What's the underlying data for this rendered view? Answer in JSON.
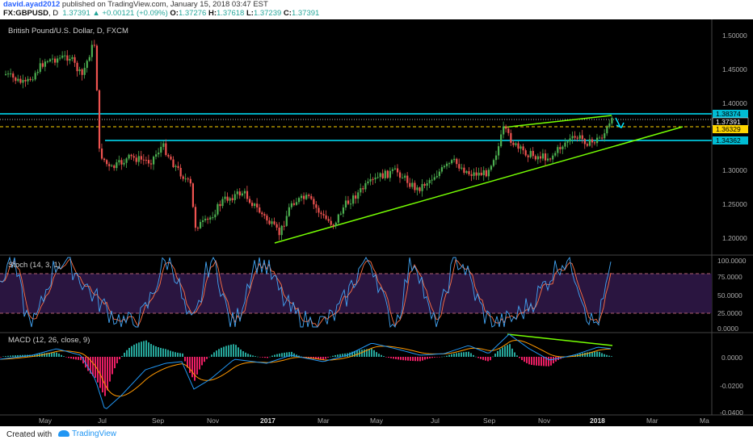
{
  "header": {
    "user": "david.ayad2012",
    "published": "published on TradingView.com, January 15, 2018 03:47 EST",
    "symbol": "FX:GBPUSD",
    "interval": "D",
    "last": "1.37391",
    "arrow": "▲",
    "change": "+0.00121 (+0.09%)",
    "o_label": "O:",
    "o": "1.37276",
    "h_label": "H:",
    "h": "1.37618",
    "l_label": "L:",
    "l": "1.37239",
    "c_label": "C:",
    "c": "1.37391"
  },
  "main_pane": {
    "title": "British Pound/U.S. Dollar, D, FXCM",
    "price_axis": [
      "1.50000",
      "1.45000",
      "1.40000",
      "1.30000",
      "1.25000",
      "1.20000"
    ],
    "price_labels": [
      {
        "text": "1.38374",
        "color": "#00bcd4"
      },
      {
        "text": "1.37391",
        "color": "#ffffff"
      },
      {
        "text": "1.36329",
        "color": "#ffd600"
      },
      {
        "text": "1.34362",
        "color": "#00bcd4"
      }
    ]
  },
  "stoch_pane": {
    "title": "Stoch (14, 3, 1)",
    "axis": [
      "100.0000",
      "75.0000",
      "50.0000",
      "25.0000",
      "0.0000"
    ]
  },
  "macd_pane": {
    "title": "MACD (12, 26, close, 9)",
    "axis": [
      "0.0000",
      "-0.0200",
      "-0.0400"
    ]
  },
  "time_axis": [
    "May",
    "Jul",
    "Sep",
    "Nov",
    "2017",
    "Mar",
    "May",
    "Jul",
    "Sep",
    "Nov",
    "2018",
    "Mar",
    "Ma"
  ],
  "colors": {
    "up": "#26a69a",
    "up_candle": "#4caf50",
    "down_candle": "#ef5350",
    "cyan": "#00e5ff",
    "trend": "#76ff03",
    "stoch_k": "#42a5f5",
    "stoch_d": "#ff7043",
    "stoch_band": "#2a1540"
  },
  "footer": {
    "created_with": "Created with",
    "brand": "TradingView"
  }
}
